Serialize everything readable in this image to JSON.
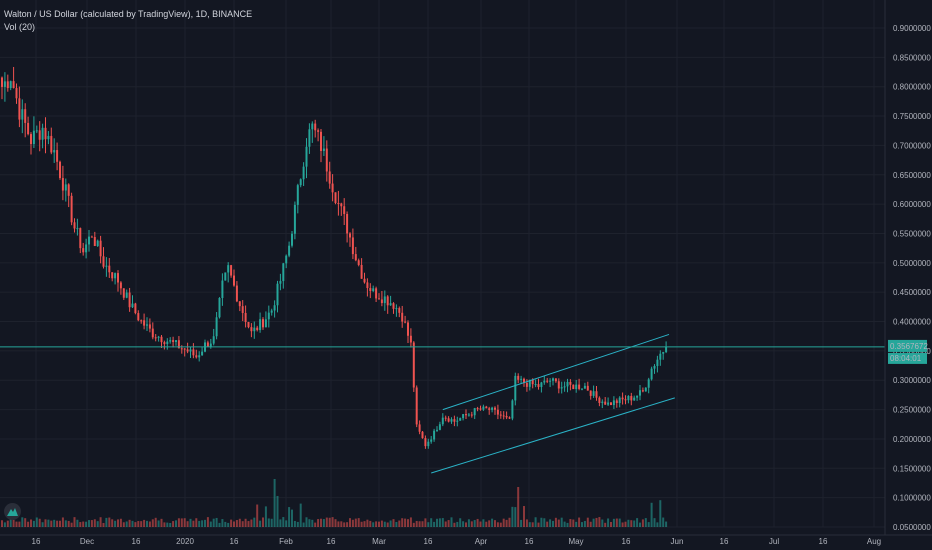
{
  "legend": {
    "title": "Walton / US Dollar (calculated by TradingView), 1D, BINANCE",
    "volume_label": "Vol (20)"
  },
  "price_badge": {
    "price": "0.3567672",
    "countdown": "08:04:01",
    "color": "#26a69a"
  },
  "colors": {
    "background": "#131722",
    "up": "#26a69a",
    "down": "#ef5350",
    "grid": "#1e222d",
    "channel": "#2ab2c6",
    "price_line": "#26a69a"
  },
  "chart_data": {
    "type": "candlestick",
    "y_axis": {
      "ticks": [
        "0.9000000",
        "0.8500000",
        "0.8000000",
        "0.7500000",
        "0.7000000",
        "0.6500000",
        "0.6000000",
        "0.5500000",
        "0.5000000",
        "0.4500000",
        "0.4000000",
        "0.3500000",
        "0.3000000",
        "0.2500000",
        "0.2000000",
        "0.1500000",
        "0.1000000",
        "0.0500000"
      ],
      "range": [
        0.05,
        0.9
      ]
    },
    "x_axis": {
      "ticks": [
        "16",
        "Dec",
        "16",
        "2020",
        "16",
        "Feb",
        "16",
        "Mar",
        "16",
        "Apr",
        "16",
        "May",
        "16",
        "Jun",
        "16",
        "Jul",
        "16",
        "Aug"
      ]
    },
    "last_price": 0.3567672,
    "grid": true,
    "series_anchors": {
      "close_path": [
        [
          0,
          0.8
        ],
        [
          3,
          0.82
        ],
        [
          6,
          0.76
        ],
        [
          10,
          0.71
        ],
        [
          14,
          0.73
        ],
        [
          18,
          0.69
        ],
        [
          22,
          0.62
        ],
        [
          25,
          0.56
        ],
        [
          28,
          0.52
        ],
        [
          31,
          0.55
        ],
        [
          35,
          0.5
        ],
        [
          40,
          0.47
        ],
        [
          44,
          0.43
        ],
        [
          48,
          0.4
        ],
        [
          52,
          0.38
        ],
        [
          56,
          0.37
        ],
        [
          60,
          0.36
        ],
        [
          64,
          0.35
        ],
        [
          67,
          0.34
        ],
        [
          70,
          0.36
        ],
        [
          73,
          0.37
        ],
        [
          76,
          0.46
        ],
        [
          78,
          0.49
        ],
        [
          82,
          0.43
        ],
        [
          86,
          0.38
        ],
        [
          90,
          0.4
        ],
        [
          93,
          0.42
        ],
        [
          96,
          0.47
        ],
        [
          99,
          0.53
        ],
        [
          102,
          0.62
        ],
        [
          105,
          0.71
        ],
        [
          107,
          0.73
        ],
        [
          110,
          0.7
        ],
        [
          113,
          0.65
        ],
        [
          116,
          0.6
        ],
        [
          119,
          0.56
        ],
        [
          122,
          0.51
        ],
        [
          125,
          0.47
        ],
        [
          128,
          0.45
        ],
        [
          132,
          0.44
        ],
        [
          135,
          0.43
        ],
        [
          138,
          0.41
        ],
        [
          141,
          0.36
        ],
        [
          143,
          0.22
        ],
        [
          146,
          0.19
        ],
        [
          149,
          0.21
        ],
        [
          152,
          0.24
        ],
        [
          156,
          0.23
        ],
        [
          160,
          0.24
        ],
        [
          164,
          0.25
        ],
        [
          168,
          0.25
        ],
        [
          172,
          0.24
        ],
        [
          175,
          0.23
        ],
        [
          177,
          0.3
        ],
        [
          181,
          0.295
        ],
        [
          185,
          0.29
        ],
        [
          189,
          0.3
        ],
        [
          193,
          0.29
        ],
        [
          197,
          0.29
        ],
        [
          201,
          0.29
        ],
        [
          205,
          0.27
        ],
        [
          209,
          0.26
        ],
        [
          213,
          0.265
        ],
        [
          217,
          0.27
        ],
        [
          221,
          0.28
        ],
        [
          224,
          0.32
        ],
        [
          227,
          0.345
        ],
        [
          229,
          0.357
        ]
      ]
    },
    "channel": {
      "upper": [
        [
          152,
          0.25
        ],
        [
          230,
          0.378
        ]
      ],
      "lower": [
        [
          148,
          0.142
        ],
        [
          232,
          0.27
        ]
      ]
    }
  }
}
